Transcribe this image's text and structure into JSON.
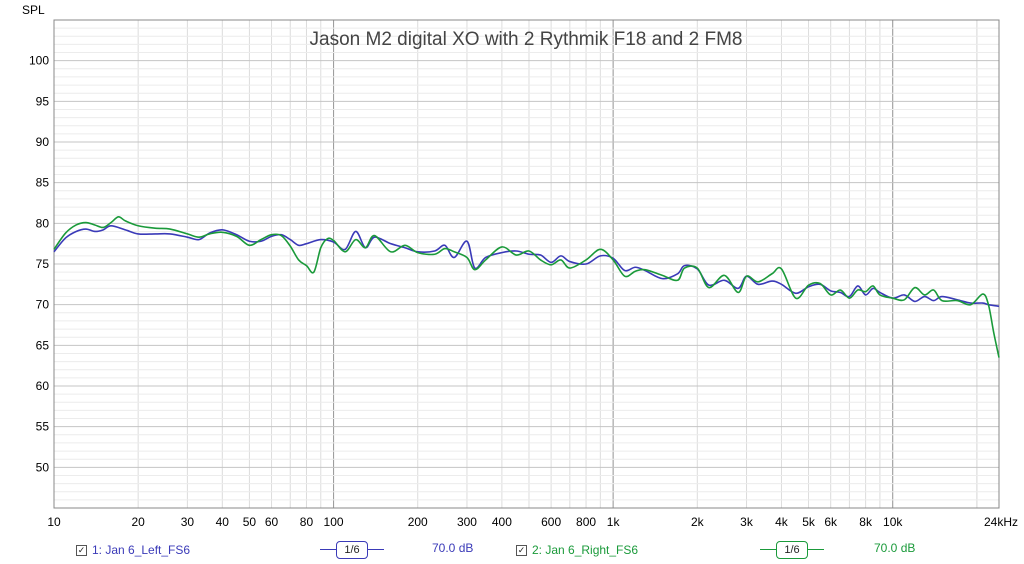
{
  "chart_data": {
    "type": "line",
    "title": "Jason M2 digital XO with 2 Rythmik F18 and 2 FM8",
    "ylabel": "SPL",
    "xlabel": "",
    "x_scale": "log",
    "xlim": [
      10,
      24000
    ],
    "ylim": [
      45,
      105
    ],
    "yticks": [
      50,
      55,
      60,
      65,
      70,
      75,
      80,
      85,
      90,
      95,
      100
    ],
    "xticks": [
      {
        "v": 10,
        "label": "10"
      },
      {
        "v": 20,
        "label": "20"
      },
      {
        "v": 30,
        "label": "30"
      },
      {
        "v": 40,
        "label": "40"
      },
      {
        "v": 50,
        "label": "50"
      },
      {
        "v": 60,
        "label": "60"
      },
      {
        "v": 80,
        "label": "80"
      },
      {
        "v": 100,
        "label": "100"
      },
      {
        "v": 200,
        "label": "200"
      },
      {
        "v": 300,
        "label": "300"
      },
      {
        "v": 400,
        "label": "400"
      },
      {
        "v": 600,
        "label": "600"
      },
      {
        "v": 800,
        "label": "800"
      },
      {
        "v": 1000,
        "label": "1k"
      },
      {
        "v": 2000,
        "label": "2k"
      },
      {
        "v": 3000,
        "label": "3k"
      },
      {
        "v": 4000,
        "label": "4k"
      },
      {
        "v": 5000,
        "label": "5k"
      },
      {
        "v": 6000,
        "label": "6k"
      },
      {
        "v": 8000,
        "label": "8k"
      },
      {
        "v": 10000,
        "label": "10k"
      },
      {
        "v": 24000,
        "label": "24kHz"
      }
    ],
    "grid": true,
    "legend_placement": "bottom",
    "series": [
      {
        "name": "1: Jan 6_Left_FS6",
        "color": "#3a3ab8",
        "smoothing": "1/6",
        "offset": "70.0 dB",
        "points": [
          [
            10,
            76.5
          ],
          [
            11,
            78.2
          ],
          [
            12,
            79.0
          ],
          [
            13,
            79.3
          ],
          [
            14,
            79.0
          ],
          [
            15,
            79.2
          ],
          [
            16,
            79.7
          ],
          [
            18,
            79.2
          ],
          [
            20,
            78.7
          ],
          [
            23,
            78.7
          ],
          [
            26,
            78.7
          ],
          [
            30,
            78.3
          ],
          [
            33,
            78.0
          ],
          [
            36,
            78.8
          ],
          [
            40,
            79.2
          ],
          [
            45,
            78.6
          ],
          [
            50,
            77.8
          ],
          [
            55,
            77.8
          ],
          [
            60,
            78.4
          ],
          [
            65,
            78.6
          ],
          [
            70,
            78.0
          ],
          [
            75,
            77.3
          ],
          [
            80,
            77.5
          ],
          [
            90,
            78.0
          ],
          [
            100,
            77.7
          ],
          [
            110,
            76.8
          ],
          [
            120,
            79.0
          ],
          [
            130,
            77.0
          ],
          [
            140,
            78.3
          ],
          [
            160,
            77.5
          ],
          [
            180,
            77.0
          ],
          [
            200,
            76.5
          ],
          [
            230,
            76.6
          ],
          [
            250,
            77.3
          ],
          [
            270,
            75.8
          ],
          [
            300,
            77.8
          ],
          [
            320,
            74.5
          ],
          [
            350,
            75.8
          ],
          [
            400,
            76.4
          ],
          [
            450,
            76.6
          ],
          [
            500,
            76.2
          ],
          [
            550,
            76.1
          ],
          [
            600,
            75.2
          ],
          [
            650,
            76.0
          ],
          [
            700,
            75.3
          ],
          [
            800,
            75.0
          ],
          [
            900,
            76.0
          ],
          [
            1000,
            75.7
          ],
          [
            1100,
            74.2
          ],
          [
            1200,
            74.6
          ],
          [
            1300,
            74.2
          ],
          [
            1500,
            73.2
          ],
          [
            1700,
            73.8
          ],
          [
            1800,
            74.8
          ],
          [
            2000,
            74.4
          ],
          [
            2200,
            72.4
          ],
          [
            2500,
            73.0
          ],
          [
            2800,
            72.0
          ],
          [
            3000,
            73.5
          ],
          [
            3300,
            72.5
          ],
          [
            3700,
            72.9
          ],
          [
            4000,
            72.5
          ],
          [
            4500,
            71.4
          ],
          [
            5000,
            72.2
          ],
          [
            5500,
            72.5
          ],
          [
            6000,
            71.7
          ],
          [
            6500,
            71.5
          ],
          [
            7000,
            71.0
          ],
          [
            7500,
            72.3
          ],
          [
            8000,
            71.2
          ],
          [
            8500,
            72.0
          ],
          [
            9000,
            71.5
          ],
          [
            10000,
            70.8
          ],
          [
            11000,
            71.2
          ],
          [
            12000,
            70.4
          ],
          [
            13000,
            71.0
          ],
          [
            14000,
            70.5
          ],
          [
            15000,
            71.0
          ],
          [
            17000,
            70.6
          ],
          [
            19000,
            70.2
          ],
          [
            21000,
            70.2
          ],
          [
            22000,
            70.0
          ],
          [
            24000,
            69.8
          ]
        ]
      },
      {
        "name": "2: Jan 6_Right_FS6",
        "color": "#1a9a3a",
        "smoothing": "1/6",
        "offset": "70.0 dB",
        "points": [
          [
            10,
            76.8
          ],
          [
            11,
            78.8
          ],
          [
            12,
            79.8
          ],
          [
            13,
            80.1
          ],
          [
            14,
            79.8
          ],
          [
            15,
            79.5
          ],
          [
            16,
            80.1
          ],
          [
            17,
            80.8
          ],
          [
            18,
            80.3
          ],
          [
            20,
            79.7
          ],
          [
            23,
            79.4
          ],
          [
            26,
            79.3
          ],
          [
            30,
            78.7
          ],
          [
            33,
            78.3
          ],
          [
            36,
            78.7
          ],
          [
            40,
            78.9
          ],
          [
            45,
            78.4
          ],
          [
            50,
            77.3
          ],
          [
            55,
            78.0
          ],
          [
            60,
            78.6
          ],
          [
            65,
            78.5
          ],
          [
            70,
            77.2
          ],
          [
            75,
            75.5
          ],
          [
            80,
            74.8
          ],
          [
            85,
            74.0
          ],
          [
            90,
            77.0
          ],
          [
            95,
            78.1
          ],
          [
            100,
            77.9
          ],
          [
            110,
            76.5
          ],
          [
            120,
            78.0
          ],
          [
            130,
            77.0
          ],
          [
            140,
            78.5
          ],
          [
            160,
            76.5
          ],
          [
            180,
            77.3
          ],
          [
            200,
            76.4
          ],
          [
            230,
            76.2
          ],
          [
            250,
            76.9
          ],
          [
            270,
            76.5
          ],
          [
            300,
            75.8
          ],
          [
            320,
            74.3
          ],
          [
            350,
            75.5
          ],
          [
            400,
            77.1
          ],
          [
            450,
            76.1
          ],
          [
            500,
            76.6
          ],
          [
            550,
            75.5
          ],
          [
            600,
            74.9
          ],
          [
            650,
            75.5
          ],
          [
            700,
            74.5
          ],
          [
            800,
            75.5
          ],
          [
            900,
            76.8
          ],
          [
            1000,
            75.5
          ],
          [
            1100,
            73.5
          ],
          [
            1200,
            74.1
          ],
          [
            1300,
            74.3
          ],
          [
            1500,
            73.6
          ],
          [
            1700,
            73.0
          ],
          [
            1800,
            74.5
          ],
          [
            2000,
            74.5
          ],
          [
            2200,
            72.1
          ],
          [
            2500,
            73.6
          ],
          [
            2800,
            71.5
          ],
          [
            3000,
            73.5
          ],
          [
            3300,
            72.8
          ],
          [
            3700,
            73.8
          ],
          [
            4000,
            74.4
          ],
          [
            4500,
            70.8
          ],
          [
            5000,
            72.4
          ],
          [
            5500,
            72.6
          ],
          [
            6000,
            71.2
          ],
          [
            6500,
            71.8
          ],
          [
            7000,
            70.8
          ],
          [
            7500,
            71.8
          ],
          [
            8000,
            71.6
          ],
          [
            8500,
            72.3
          ],
          [
            9000,
            71.2
          ],
          [
            10000,
            70.8
          ],
          [
            11000,
            70.6
          ],
          [
            12000,
            72.1
          ],
          [
            13000,
            71.2
          ],
          [
            14000,
            71.8
          ],
          [
            15000,
            70.5
          ],
          [
            17000,
            70.5
          ],
          [
            19000,
            70.0
          ],
          [
            21000,
            71.3
          ],
          [
            22000,
            70.0
          ],
          [
            23000,
            66.5
          ],
          [
            24000,
            63.5
          ]
        ]
      }
    ]
  }
}
